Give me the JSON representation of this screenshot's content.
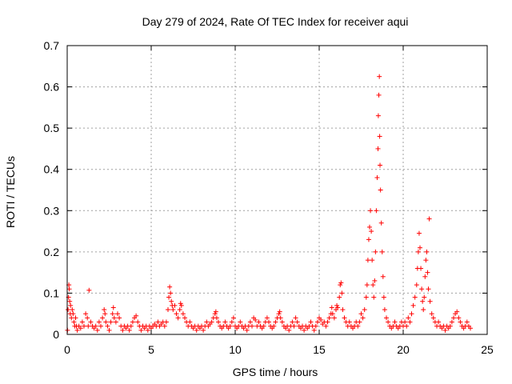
{
  "chart_data": {
    "type": "scatter",
    "title": "Day 279 of 2024, Rate Of TEC Index for receiver aqui",
    "xlabel": "GPS time / hours",
    "ylabel": "ROTI / TECUs",
    "xlim": [
      0,
      25
    ],
    "ylim": [
      0,
      0.7
    ],
    "xticks": [
      0,
      5,
      10,
      15,
      20,
      25
    ],
    "yticks": [
      0,
      0.1,
      0.2,
      0.3,
      0.4,
      0.5,
      0.6,
      0.7
    ],
    "grid": true,
    "marker": "+",
    "color": "#ff0000",
    "series": [
      {
        "name": "ROTI",
        "points": [
          [
            0.02,
            0.01
          ],
          [
            0.05,
            0.06
          ],
          [
            0.08,
            0.09
          ],
          [
            0.1,
            0.12
          ],
          [
            0.12,
            0.11
          ],
          [
            0.15,
            0.08
          ],
          [
            0.18,
            0.05
          ],
          [
            0.2,
            0.07
          ],
          [
            0.25,
            0.04
          ],
          [
            0.3,
            0.06
          ],
          [
            0.35,
            0.05
          ],
          [
            0.4,
            0.03
          ],
          [
            0.45,
            0.02
          ],
          [
            0.5,
            0.04
          ],
          [
            0.55,
            0.02
          ],
          [
            0.6,
            0.01
          ],
          [
            0.7,
            0.02
          ],
          [
            0.8,
            0.015
          ],
          [
            0.9,
            0.03
          ],
          [
            1.0,
            0.02
          ],
          [
            1.1,
            0.05
          ],
          [
            1.2,
            0.04
          ],
          [
            1.25,
            0.02
          ],
          [
            1.3,
            0.107
          ],
          [
            1.4,
            0.03
          ],
          [
            1.5,
            0.02
          ],
          [
            1.6,
            0.015
          ],
          [
            1.7,
            0.02
          ],
          [
            1.8,
            0.01
          ],
          [
            1.9,
            0.03
          ],
          [
            2.0,
            0.02
          ],
          [
            2.1,
            0.04
          ],
          [
            2.2,
            0.06
          ],
          [
            2.25,
            0.05
          ],
          [
            2.3,
            0.03
          ],
          [
            2.4,
            0.02
          ],
          [
            2.5,
            0.01
          ],
          [
            2.6,
            0.03
          ],
          [
            2.7,
            0.05
          ],
          [
            2.75,
            0.065
          ],
          [
            2.8,
            0.04
          ],
          [
            2.9,
            0.03
          ],
          [
            3.0,
            0.05
          ],
          [
            3.1,
            0.04
          ],
          [
            3.2,
            0.02
          ],
          [
            3.3,
            0.01
          ],
          [
            3.4,
            0.02
          ],
          [
            3.5,
            0.015
          ],
          [
            3.6,
            0.02
          ],
          [
            3.7,
            0.01
          ],
          [
            3.8,
            0.02
          ],
          [
            3.9,
            0.03
          ],
          [
            4.0,
            0.04
          ],
          [
            4.1,
            0.045
          ],
          [
            4.2,
            0.03
          ],
          [
            4.3,
            0.02
          ],
          [
            4.4,
            0.01
          ],
          [
            4.5,
            0.02
          ],
          [
            4.6,
            0.015
          ],
          [
            4.7,
            0.02
          ],
          [
            4.8,
            0.01
          ],
          [
            4.9,
            0.02
          ],
          [
            5.0,
            0.015
          ],
          [
            5.1,
            0.02
          ],
          [
            5.2,
            0.025
          ],
          [
            5.3,
            0.02
          ],
          [
            5.4,
            0.03
          ],
          [
            5.5,
            0.02
          ],
          [
            5.6,
            0.025
          ],
          [
            5.7,
            0.03
          ],
          [
            5.8,
            0.02
          ],
          [
            5.9,
            0.03
          ],
          [
            6.0,
            0.06
          ],
          [
            6.05,
            0.09
          ],
          [
            6.1,
            0.115
          ],
          [
            6.15,
            0.1
          ],
          [
            6.2,
            0.08
          ],
          [
            6.25,
            0.07
          ],
          [
            6.3,
            0.06
          ],
          [
            6.4,
            0.07
          ],
          [
            6.5,
            0.05
          ],
          [
            6.6,
            0.04
          ],
          [
            6.7,
            0.06
          ],
          [
            6.75,
            0.075
          ],
          [
            6.8,
            0.07
          ],
          [
            6.9,
            0.05
          ],
          [
            7.0,
            0.04
          ],
          [
            7.1,
            0.03
          ],
          [
            7.2,
            0.02
          ],
          [
            7.3,
            0.03
          ],
          [
            7.4,
            0.02
          ],
          [
            7.5,
            0.015
          ],
          [
            7.6,
            0.02
          ],
          [
            7.7,
            0.01
          ],
          [
            7.8,
            0.02
          ],
          [
            7.9,
            0.015
          ],
          [
            8.0,
            0.02
          ],
          [
            8.1,
            0.01
          ],
          [
            8.2,
            0.02
          ],
          [
            8.3,
            0.03
          ],
          [
            8.4,
            0.02
          ],
          [
            8.5,
            0.025
          ],
          [
            8.6,
            0.03
          ],
          [
            8.7,
            0.04
          ],
          [
            8.8,
            0.05
          ],
          [
            8.85,
            0.055
          ],
          [
            8.9,
            0.04
          ],
          [
            9.0,
            0.03
          ],
          [
            9.1,
            0.02
          ],
          [
            9.2,
            0.015
          ],
          [
            9.3,
            0.02
          ],
          [
            9.4,
            0.03
          ],
          [
            9.5,
            0.02
          ],
          [
            9.6,
            0.015
          ],
          [
            9.7,
            0.02
          ],
          [
            9.8,
            0.03
          ],
          [
            9.9,
            0.04
          ],
          [
            10.0,
            0.02
          ],
          [
            10.1,
            0.015
          ],
          [
            10.2,
            0.02
          ],
          [
            10.3,
            0.03
          ],
          [
            10.4,
            0.02
          ],
          [
            10.5,
            0.015
          ],
          [
            10.6,
            0.02
          ],
          [
            10.7,
            0.01
          ],
          [
            10.8,
            0.02
          ],
          [
            10.9,
            0.03
          ],
          [
            11.0,
            0.02
          ],
          [
            11.1,
            0.04
          ],
          [
            11.2,
            0.035
          ],
          [
            11.3,
            0.02
          ],
          [
            11.4,
            0.03
          ],
          [
            11.5,
            0.02
          ],
          [
            11.6,
            0.015
          ],
          [
            11.7,
            0.02
          ],
          [
            11.8,
            0.03
          ],
          [
            11.9,
            0.04
          ],
          [
            12.0,
            0.03
          ],
          [
            12.1,
            0.02
          ],
          [
            12.2,
            0.015
          ],
          [
            12.3,
            0.02
          ],
          [
            12.4,
            0.03
          ],
          [
            12.5,
            0.04
          ],
          [
            12.6,
            0.05
          ],
          [
            12.65,
            0.055
          ],
          [
            12.7,
            0.04
          ],
          [
            12.8,
            0.03
          ],
          [
            12.9,
            0.02
          ],
          [
            13.0,
            0.015
          ],
          [
            13.1,
            0.02
          ],
          [
            13.2,
            0.01
          ],
          [
            13.3,
            0.02
          ],
          [
            13.4,
            0.03
          ],
          [
            13.5,
            0.02
          ],
          [
            13.6,
            0.04
          ],
          [
            13.7,
            0.03
          ],
          [
            13.8,
            0.02
          ],
          [
            13.9,
            0.015
          ],
          [
            14.0,
            0.02
          ],
          [
            14.1,
            0.01
          ],
          [
            14.2,
            0.02
          ],
          [
            14.3,
            0.015
          ],
          [
            14.4,
            0.02
          ],
          [
            14.5,
            0.03
          ],
          [
            14.6,
            0.02
          ],
          [
            14.7,
            0.01
          ],
          [
            14.8,
            0.02
          ],
          [
            14.9,
            0.03
          ],
          [
            15.0,
            0.04
          ],
          [
            15.1,
            0.035
          ],
          [
            15.2,
            0.025
          ],
          [
            15.3,
            0.03
          ],
          [
            15.4,
            0.02
          ],
          [
            15.5,
            0.03
          ],
          [
            15.6,
            0.04
          ],
          [
            15.7,
            0.05
          ],
          [
            15.75,
            0.065
          ],
          [
            15.8,
            0.05
          ],
          [
            15.9,
            0.04
          ],
          [
            16.0,
            0.06
          ],
          [
            16.05,
            0.07
          ],
          [
            16.1,
            0.065
          ],
          [
            16.2,
            0.09
          ],
          [
            16.25,
            0.12
          ],
          [
            16.3,
            0.125
          ],
          [
            16.35,
            0.1
          ],
          [
            16.4,
            0.06
          ],
          [
            16.5,
            0.04
          ],
          [
            16.6,
            0.03
          ],
          [
            16.7,
            0.02
          ],
          [
            16.8,
            0.03
          ],
          [
            16.9,
            0.02
          ],
          [
            17.0,
            0.015
          ],
          [
            17.1,
            0.02
          ],
          [
            17.2,
            0.03
          ],
          [
            17.3,
            0.02
          ],
          [
            17.4,
            0.03
          ],
          [
            17.5,
            0.05
          ],
          [
            17.6,
            0.04
          ],
          [
            17.7,
            0.06
          ],
          [
            17.8,
            0.09
          ],
          [
            17.85,
            0.12
          ],
          [
            17.9,
            0.18
          ],
          [
            17.95,
            0.23
          ],
          [
            18.0,
            0.26
          ],
          [
            18.05,
            0.3
          ],
          [
            18.1,
            0.25
          ],
          [
            18.15,
            0.18
          ],
          [
            18.2,
            0.12
          ],
          [
            18.25,
            0.09
          ],
          [
            18.3,
            0.13
          ],
          [
            18.35,
            0.2
          ],
          [
            18.4,
            0.3
          ],
          [
            18.45,
            0.38
          ],
          [
            18.5,
            0.45
          ],
          [
            18.52,
            0.53
          ],
          [
            18.55,
            0.58
          ],
          [
            18.58,
            0.625
          ],
          [
            18.6,
            0.48
          ],
          [
            18.62,
            0.41
          ],
          [
            18.65,
            0.35
          ],
          [
            18.7,
            0.27
          ],
          [
            18.75,
            0.2
          ],
          [
            18.8,
            0.14
          ],
          [
            18.85,
            0.09
          ],
          [
            18.9,
            0.06
          ],
          [
            19.0,
            0.04
          ],
          [
            19.1,
            0.03
          ],
          [
            19.2,
            0.02
          ],
          [
            19.3,
            0.015
          ],
          [
            19.4,
            0.02
          ],
          [
            19.5,
            0.03
          ],
          [
            19.6,
            0.02
          ],
          [
            19.7,
            0.015
          ],
          [
            19.8,
            0.02
          ],
          [
            19.9,
            0.03
          ],
          [
            20.0,
            0.02
          ],
          [
            20.1,
            0.03
          ],
          [
            20.2,
            0.02
          ],
          [
            20.3,
            0.04
          ],
          [
            20.4,
            0.03
          ],
          [
            20.5,
            0.05
          ],
          [
            20.6,
            0.07
          ],
          [
            20.7,
            0.09
          ],
          [
            20.8,
            0.12
          ],
          [
            20.85,
            0.16
          ],
          [
            20.9,
            0.2
          ],
          [
            20.95,
            0.245
          ],
          [
            21.0,
            0.21
          ],
          [
            21.05,
            0.16
          ],
          [
            21.1,
            0.11
          ],
          [
            21.15,
            0.08
          ],
          [
            21.2,
            0.06
          ],
          [
            21.25,
            0.09
          ],
          [
            21.3,
            0.14
          ],
          [
            21.35,
            0.18
          ],
          [
            21.4,
            0.2
          ],
          [
            21.45,
            0.15
          ],
          [
            21.5,
            0.11
          ],
          [
            21.55,
            0.28
          ],
          [
            21.6,
            0.08
          ],
          [
            21.7,
            0.05
          ],
          [
            21.8,
            0.04
          ],
          [
            21.9,
            0.03
          ],
          [
            22.0,
            0.02
          ],
          [
            22.1,
            0.03
          ],
          [
            22.2,
            0.02
          ],
          [
            22.3,
            0.015
          ],
          [
            22.4,
            0.02
          ],
          [
            22.5,
            0.01
          ],
          [
            22.6,
            0.02
          ],
          [
            22.7,
            0.015
          ],
          [
            22.8,
            0.02
          ],
          [
            22.9,
            0.03
          ],
          [
            23.0,
            0.04
          ],
          [
            23.1,
            0.05
          ],
          [
            23.2,
            0.055
          ],
          [
            23.3,
            0.04
          ],
          [
            23.4,
            0.03
          ],
          [
            23.5,
            0.02
          ],
          [
            23.6,
            0.015
          ],
          [
            23.7,
            0.02
          ],
          [
            23.8,
            0.03
          ],
          [
            23.9,
            0.02
          ],
          [
            24.0,
            0.015
          ]
        ]
      }
    ]
  }
}
